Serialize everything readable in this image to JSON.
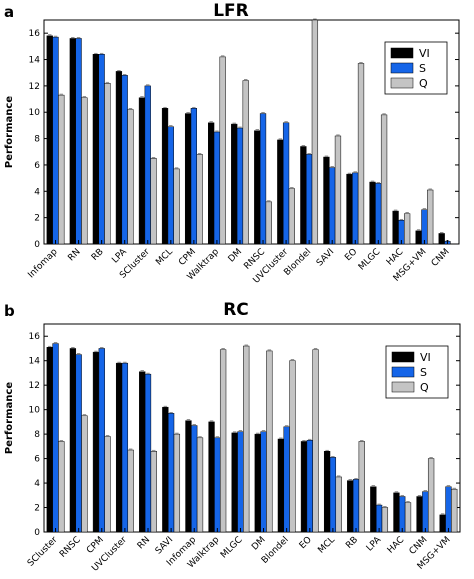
{
  "series_colors": {
    "VI": "#000000",
    "S": "#1565e8",
    "Q": "#c4c4c4"
  },
  "chart_data": [
    {
      "type": "bar",
      "panel": "a",
      "title": "LFR",
      "ylabel": "Performance",
      "ylim": [
        0,
        17
      ],
      "yticks": [
        0,
        2,
        4,
        6,
        8,
        10,
        12,
        14,
        16
      ],
      "legend": "top-right",
      "grid": false,
      "categories": [
        "Infomap",
        "RN",
        "RB",
        "LPA",
        "SCluster",
        "MCL",
        "CPM",
        "Walktrap",
        "DM",
        "RNSC",
        "UVCluster",
        "Blondel",
        "SAVI",
        "EO",
        "MLGC",
        "HAC",
        "MSG+VM",
        "CNM"
      ],
      "series": [
        {
          "name": "VI",
          "values": [
            15.8,
            15.6,
            14.4,
            13.1,
            11.1,
            10.3,
            9.9,
            9.2,
            9.1,
            8.6,
            7.9,
            7.4,
            6.6,
            5.3,
            4.7,
            2.5,
            1.0,
            0.8
          ]
        },
        {
          "name": "S",
          "values": [
            15.7,
            15.6,
            14.4,
            12.8,
            12.0,
            8.9,
            10.3,
            8.5,
            8.8,
            9.9,
            9.2,
            6.8,
            5.8,
            5.4,
            4.6,
            1.8,
            2.6,
            0.2
          ]
        },
        {
          "name": "Q",
          "values": [
            11.3,
            11.1,
            12.2,
            10.2,
            6.5,
            5.7,
            6.8,
            14.2,
            12.4,
            3.2,
            4.2,
            17.0,
            8.2,
            13.7,
            9.8,
            2.3,
            4.1,
            0.0
          ]
        }
      ]
    },
    {
      "type": "bar",
      "panel": "b",
      "title": "RC",
      "ylabel": "Performance",
      "ylim": [
        0,
        17
      ],
      "yticks": [
        0,
        2,
        4,
        6,
        8,
        10,
        12,
        14,
        16
      ],
      "legend": "top-right",
      "grid": false,
      "categories": [
        "SCluster",
        "RNSC",
        "CPM",
        "UVCluster",
        "RN",
        "SAVI",
        "Infomap",
        "Walktrap",
        "MLGC",
        "DM",
        "Blondel",
        "EO",
        "MCL",
        "RB",
        "LPA",
        "HAC",
        "CNM",
        "MSG+VM"
      ],
      "series": [
        {
          "name": "VI",
          "values": [
            15.1,
            15.0,
            14.7,
            13.8,
            13.1,
            10.2,
            9.1,
            9.0,
            8.1,
            8.0,
            7.6,
            7.4,
            6.6,
            4.2,
            3.7,
            3.2,
            2.9,
            1.4
          ]
        },
        {
          "name": "S",
          "values": [
            15.4,
            14.5,
            15.0,
            13.8,
            12.9,
            9.7,
            8.7,
            7.7,
            8.2,
            8.2,
            8.6,
            7.5,
            6.1,
            4.3,
            2.2,
            2.9,
            3.3,
            3.7
          ]
        },
        {
          "name": "Q",
          "values": [
            7.4,
            9.5,
            7.8,
            6.7,
            6.6,
            8.0,
            7.7,
            14.9,
            15.2,
            14.8,
            14.0,
            14.9,
            4.5,
            7.4,
            2.0,
            2.4,
            6.0,
            3.5
          ]
        }
      ]
    }
  ]
}
